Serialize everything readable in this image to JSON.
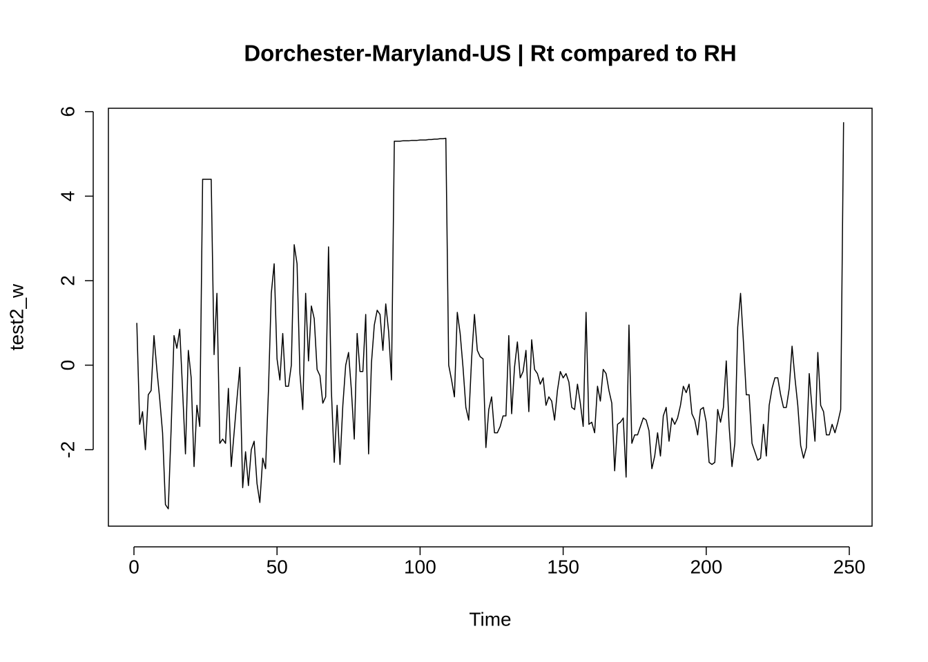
{
  "chart_data": {
    "type": "line",
    "title": "Dorchester-Maryland-US | Rt compared to RH",
    "x_label": "Time",
    "y_label": "test2_w",
    "color": "#000000",
    "xlim": [
      -8.93,
      257.96
    ],
    "ylim": [
      -3.81,
      6.08
    ],
    "xticks": [
      0,
      50,
      100,
      150,
      200,
      250
    ],
    "yticks": [
      -2,
      0,
      2,
      4,
      6
    ],
    "x": [
      1,
      2,
      3,
      4,
      5,
      6,
      7,
      8,
      9,
      10,
      11,
      12,
      13,
      14,
      15,
      16,
      17,
      18,
      19,
      20,
      21,
      22,
      23,
      24,
      25,
      26,
      27,
      28,
      29,
      30,
      31,
      32,
      33,
      34,
      35,
      36,
      37,
      38,
      39,
      40,
      41,
      42,
      43,
      44,
      45,
      46,
      47,
      48,
      49,
      50,
      51,
      52,
      53,
      54,
      55,
      56,
      57,
      58,
      59,
      60,
      61,
      62,
      63,
      64,
      65,
      66,
      67,
      68,
      69,
      70,
      71,
      72,
      73,
      74,
      75,
      76,
      77,
      78,
      79,
      80,
      81,
      82,
      83,
      84,
      85,
      86,
      87,
      88,
      89,
      90,
      91,
      92,
      93,
      94,
      95,
      96,
      97,
      98,
      99,
      100,
      101,
      102,
      103,
      104,
      105,
      106,
      107,
      108,
      109,
      110,
      111,
      112,
      113,
      114,
      115,
      116,
      117,
      118,
      119,
      120,
      121,
      122,
      123,
      124,
      125,
      126,
      127,
      128,
      129,
      130,
      131,
      132,
      133,
      134,
      135,
      136,
      137,
      138,
      139,
      140,
      141,
      142,
      143,
      144,
      145,
      146,
      147,
      148,
      149,
      150,
      151,
      152,
      153,
      154,
      155,
      156,
      157,
      158,
      159,
      160,
      161,
      162,
      163,
      164,
      165,
      166,
      167,
      168,
      169,
      170,
      171,
      172,
      173,
      174,
      175,
      176,
      177,
      178,
      179,
      180,
      181,
      182,
      183,
      184,
      185,
      186,
      187,
      188,
      189,
      190,
      191,
      192,
      193,
      194,
      195,
      196,
      197,
      198,
      199,
      200,
      201,
      202,
      203,
      204,
      205,
      206,
      207,
      208,
      209,
      210,
      211,
      212,
      213,
      214,
      215,
      216,
      217,
      218,
      219,
      220,
      221,
      222,
      223,
      224,
      225,
      226,
      227,
      228,
      229,
      230,
      231,
      232,
      233,
      234,
      235,
      236,
      237,
      238,
      239,
      240,
      241,
      242,
      243,
      244,
      245,
      246,
      247,
      248
    ],
    "values": [
      1.0,
      -1.4,
      -1.1,
      -2.0,
      -0.7,
      -0.6,
      0.7,
      -0.1,
      -0.8,
      -1.6,
      -3.3,
      -3.4,
      -1.5,
      0.7,
      0.4,
      0.85,
      -0.6,
      -2.1,
      0.35,
      -0.3,
      -2.4,
      -0.95,
      -1.45,
      4.4,
      4.4,
      4.4,
      4.4,
      0.25,
      1.7,
      -1.85,
      -1.75,
      -1.85,
      -0.55,
      -2.4,
      -1.6,
      -0.8,
      -0.05,
      -2.9,
      -2.05,
      -2.85,
      -2.0,
      -1.8,
      -2.8,
      -3.25,
      -2.2,
      -2.45,
      -0.6,
      1.7,
      2.4,
      0.15,
      -0.35,
      0.75,
      -0.5,
      -0.5,
      0.0,
      2.85,
      2.4,
      -0.2,
      -1.05,
      1.7,
      0.1,
      1.4,
      1.1,
      -0.1,
      -0.25,
      -0.9,
      -0.75,
      2.8,
      -0.6,
      -2.3,
      -0.95,
      -2.35,
      -0.95,
      0.0,
      0.3,
      -0.6,
      -1.75,
      0.75,
      -0.15,
      -0.15,
      1.2,
      -2.1,
      0.05,
      0.95,
      1.3,
      1.2,
      0.35,
      1.45,
      0.8,
      -0.35,
      5.3,
      5.3,
      5.3,
      5.31,
      5.31,
      5.31,
      5.32,
      5.32,
      5.32,
      5.33,
      5.33,
      5.33,
      5.34,
      5.34,
      5.35,
      5.35,
      5.36,
      5.36,
      5.37,
      0.0,
      -0.35,
      -0.75,
      1.25,
      0.75,
      -0.05,
      -1.0,
      -1.3,
      0.15,
      1.2,
      0.35,
      0.2,
      0.15,
      -1.95,
      -1.05,
      -0.75,
      -1.6,
      -1.6,
      -1.45,
      -1.2,
      -1.2,
      0.7,
      -1.15,
      -0.05,
      0.55,
      -0.3,
      -0.15,
      0.35,
      -1.1,
      0.6,
      -0.1,
      -0.2,
      -0.45,
      -0.3,
      -0.95,
      -0.75,
      -0.85,
      -1.3,
      -0.6,
      -0.15,
      -0.3,
      -0.2,
      -0.4,
      -1.0,
      -1.05,
      -0.45,
      -0.9,
      -1.45,
      1.25,
      -1.4,
      -1.35,
      -1.6,
      -0.5,
      -0.85,
      -0.1,
      -0.2,
      -0.6,
      -0.9,
      -2.5,
      -1.4,
      -1.35,
      -1.25,
      -2.65,
      0.95,
      -1.85,
      -1.65,
      -1.65,
      -1.45,
      -1.25,
      -1.3,
      -1.55,
      -2.45,
      -2.15,
      -1.6,
      -2.15,
      -1.2,
      -1.0,
      -1.8,
      -1.25,
      -1.4,
      -1.25,
      -0.95,
      -0.5,
      -0.65,
      -0.45,
      -1.15,
      -1.3,
      -1.65,
      -1.05,
      -1.0,
      -1.35,
      -2.3,
      -2.35,
      -2.3,
      -1.05,
      -1.35,
      -1.0,
      0.1,
      -1.45,
      -2.4,
      -1.85,
      0.9,
      1.7,
      0.55,
      -0.7,
      -0.7,
      -1.85,
      -2.05,
      -2.25,
      -2.2,
      -1.4,
      -2.15,
      -0.95,
      -0.55,
      -0.3,
      -0.3,
      -0.7,
      -1.0,
      -1.0,
      -0.55,
      0.45,
      -0.3,
      -0.95,
      -1.9,
      -2.2,
      -1.95,
      -0.2,
      -1.05,
      -1.8,
      0.3,
      -0.95,
      -1.1,
      -1.65,
      -1.65,
      -1.4,
      -1.6,
      -1.35,
      -1.05,
      5.75
    ]
  }
}
